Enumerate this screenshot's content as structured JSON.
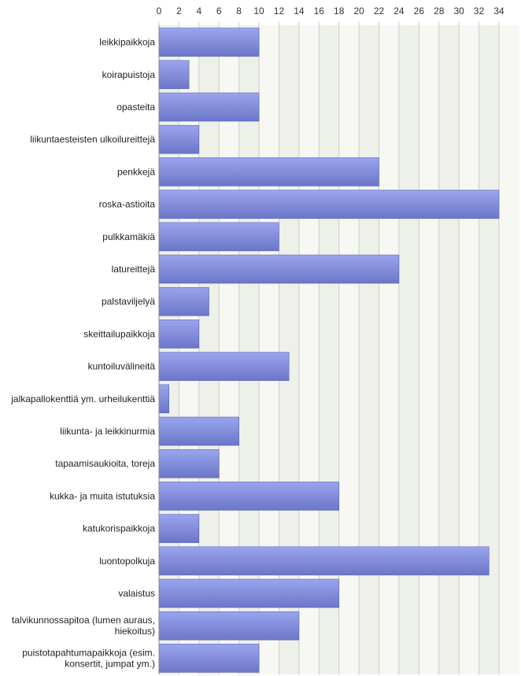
{
  "chart_data": {
    "type": "bar",
    "orientation": "horizontal",
    "title": "",
    "xlabel": "",
    "ylabel": "",
    "xlim": [
      0,
      34
    ],
    "x_ticks": [
      "0",
      "2",
      "4",
      "6",
      "8",
      "10",
      "12",
      "14",
      "16",
      "18",
      "20",
      "22",
      "24",
      "26",
      "28",
      "30",
      "32",
      "34"
    ],
    "tick_position": "top",
    "grid": true,
    "legend": "none",
    "colors": {
      "bar_top": "#9aa5ee",
      "bar_bottom": "#6c76c8",
      "bar_edge": "#5a63b4",
      "band_a": "#eef1ea",
      "band_b": "#f7f8f4",
      "gridline": "#c9cec3",
      "axis": "#888888"
    },
    "categories": [
      [
        "leikkipaikkoja"
      ],
      [
        "koirapuistoja"
      ],
      [
        "opasteita"
      ],
      [
        "liikuntaesteisten ulkoilureittejä"
      ],
      [
        "penkkejä"
      ],
      [
        "roska-astioita"
      ],
      [
        "pulkkamäkiä"
      ],
      [
        "latureittejä"
      ],
      [
        "palstaviljelyä"
      ],
      [
        "skeittailupaikkoja"
      ],
      [
        "kuntoiluvälineitä"
      ],
      [
        "jalkapallokenttiä ym. urheilukenttiä"
      ],
      [
        "liikunta- ja leikkinurmia"
      ],
      [
        "tapaamisaukioita, toreja"
      ],
      [
        "kukka- ja muita istutuksia"
      ],
      [
        "katukorispaikkoja"
      ],
      [
        "luontopolkuja"
      ],
      [
        "valaistus"
      ],
      [
        "talvikunnossapitoa (lumen auraus,",
        "hiekoitus)"
      ],
      [
        "puistotapahtumapaikkoja (esim.",
        "konsertit, jumpat ym.)"
      ]
    ],
    "values": [
      10,
      3,
      10,
      4,
      22,
      34,
      12,
      24,
      5,
      4,
      13,
      1,
      8,
      6,
      18,
      4,
      33,
      18,
      14,
      10
    ]
  }
}
